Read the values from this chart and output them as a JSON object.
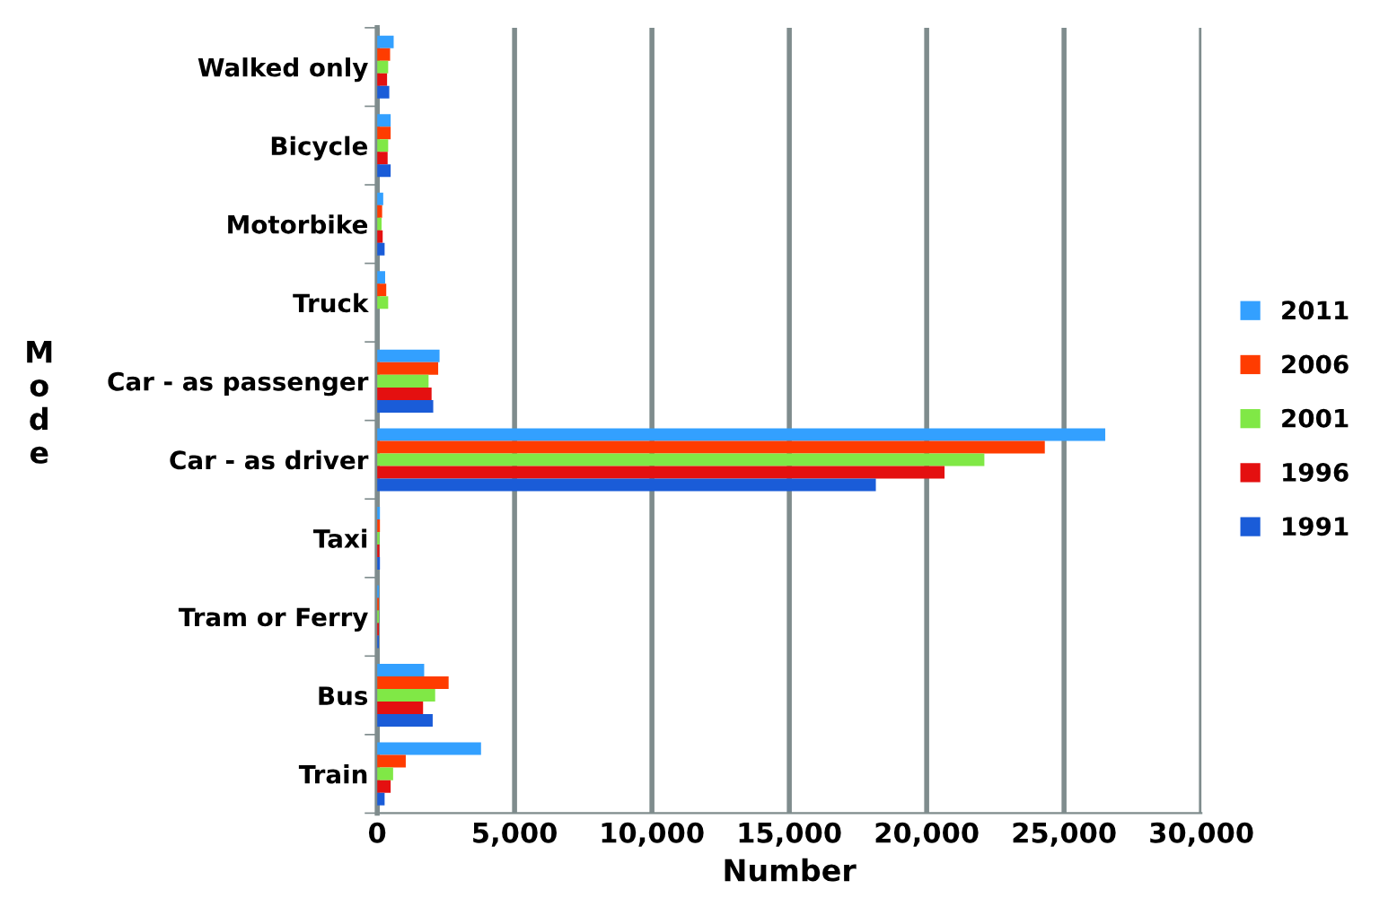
{
  "chart_data": {
    "type": "bar",
    "orientation": "horizontal",
    "xlabel": "Number",
    "ylabel": "Mode",
    "categories": [
      "Walked only",
      "Bicycle",
      "Motorbike",
      "Truck",
      "Car - as passenger",
      "Car - as driver",
      "Taxi",
      "Tram or Ferry",
      "Bus",
      "Train"
    ],
    "series": [
      {
        "name": "2011",
        "color": "#33a0ff",
        "values": [
          600,
          490,
          220,
          290,
          2270,
          26500,
          100,
          60,
          1710,
          3780
        ]
      },
      {
        "name": "2006",
        "color": "#ff3c00",
        "values": [
          470,
          490,
          180,
          330,
          2220,
          24300,
          100,
          60,
          2600,
          1040
        ]
      },
      {
        "name": "2001",
        "color": "#80e846",
        "values": [
          400,
          400,
          160,
          400,
          1870,
          22100,
          80,
          60,
          2110,
          580
        ]
      },
      {
        "name": "1996",
        "color": "#e41010",
        "values": [
          360,
          380,
          200,
          null,
          1980,
          20650,
          80,
          60,
          1670,
          490
        ]
      },
      {
        "name": "1991",
        "color": "#1a5cd8",
        "values": [
          440,
          490,
          270,
          null,
          2040,
          18150,
          100,
          60,
          2020,
          270
        ]
      }
    ],
    "xlim": [
      0,
      30000
    ],
    "xticks": [
      {
        "value": 0,
        "label": "0"
      },
      {
        "value": 5000,
        "label": "5,000"
      },
      {
        "value": 10000,
        "label": "10,000"
      },
      {
        "value": 15000,
        "label": "15,000"
      },
      {
        "value": 20000,
        "label": "20,000"
      },
      {
        "value": 25000,
        "label": "25,000"
      },
      {
        "value": 30000,
        "label": "30,000"
      }
    ],
    "grid": "x",
    "legend": "right"
  }
}
